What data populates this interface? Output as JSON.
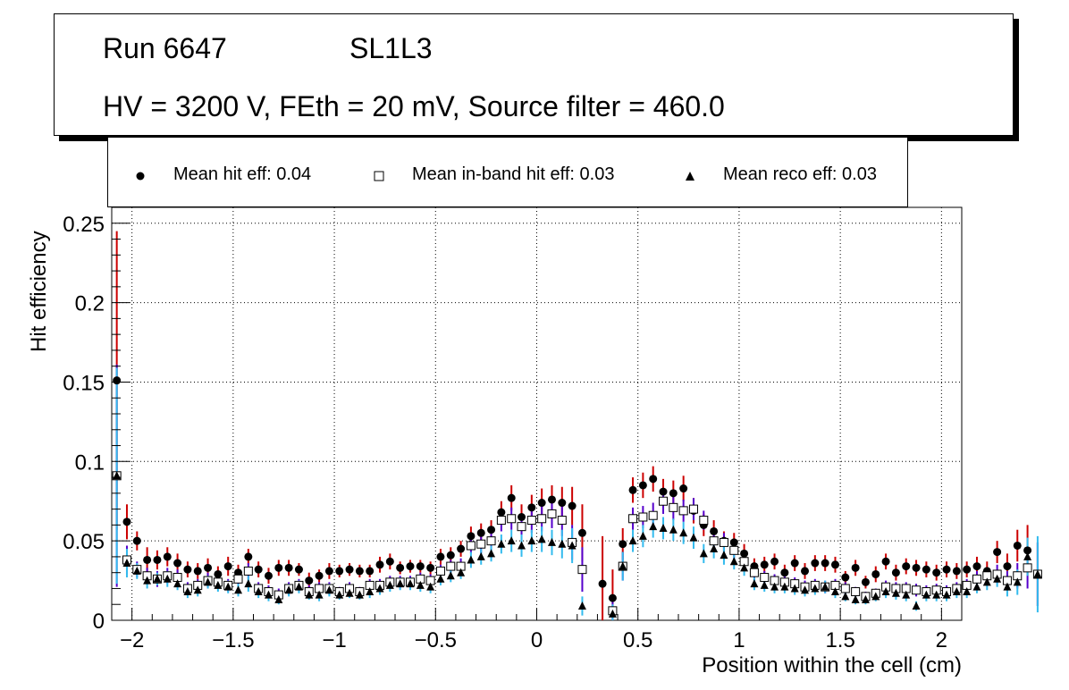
{
  "title_box": {
    "run": "Run 6647",
    "layer": "SL1L3",
    "conditions": "HV = 3200 V, FEth = 20 mV, Source filter = 460.0"
  },
  "legend": {
    "hit": "Mean hit  eff: 0.04",
    "inband": "Mean in-band hit eff: 0.03",
    "reco": "Mean reco eff: 0.03"
  },
  "colors": {
    "hit_err": "#cc0000",
    "inband_err": "#5500cc",
    "reco_err": "#33bbee",
    "grid": "#000000"
  },
  "chart_data": {
    "type": "scatter",
    "title": "",
    "xlabel": "Position within the cell (cm)",
    "ylabel": "Hit efficiency",
    "xlim": [
      -2.1,
      2.1
    ],
    "ylim": [
      0,
      0.26
    ],
    "x_ticks": [
      -2,
      -1.5,
      -1,
      -0.5,
      0,
      0.5,
      1,
      1.5,
      2
    ],
    "x_tick_labels": [
      "−2",
      "−1.5",
      "−1",
      "−0.5",
      "0",
      "0.5",
      "1",
      "1.5",
      "2"
    ],
    "y_ticks": [
      0,
      0.05,
      0.1,
      0.15,
      0.2,
      0.25
    ],
    "y_tick_labels": [
      "0",
      "0.05",
      "0.1",
      "0.15",
      "0.2",
      "0.25"
    ],
    "x_start": -2.075,
    "x_step": 0.05,
    "series": [
      {
        "name": "Mean hit  eff: 0.04",
        "marker": "filled-circle",
        "values": [
          0.151,
          0.062,
          0.05,
          0.038,
          0.038,
          0.04,
          0.036,
          0.032,
          0.031,
          0.033,
          0.029,
          0.034,
          0.03,
          0.04,
          0.032,
          0.028,
          0.033,
          0.033,
          0.032,
          0.025,
          0.028,
          0.031,
          0.031,
          0.032,
          0.031,
          0.031,
          0.035,
          0.037,
          0.033,
          0.034,
          0.034,
          0.033,
          0.04,
          0.041,
          0.045,
          0.053,
          0.055,
          0.057,
          0.068,
          0.077,
          0.065,
          0.071,
          0.074,
          0.076,
          0.074,
          0.072,
          0.055,
          null,
          0.023,
          0.014,
          0.048,
          0.082,
          0.085,
          0.089,
          0.081,
          0.08,
          0.083,
          0.069,
          0.06,
          0.056,
          0.05,
          0.049,
          0.042,
          0.034,
          0.035,
          0.037,
          0.03,
          0.036,
          0.031,
          0.036,
          0.036,
          0.035,
          0.027,
          0.033,
          0.024,
          0.029,
          0.037,
          0.03,
          0.034,
          0.033,
          0.032,
          0.03,
          0.032,
          0.031,
          0.032,
          0.034,
          0.031,
          0.043,
          0.034,
          0.047,
          0.044,
          0.029
        ]
      },
      {
        "name": "Mean in-band hit eff: 0.03",
        "marker": "open-square",
        "values": [
          0.091,
          0.038,
          0.032,
          0.028,
          0.026,
          0.028,
          0.027,
          0.02,
          0.022,
          0.025,
          0.024,
          0.022,
          0.026,
          0.031,
          0.02,
          0.018,
          0.016,
          0.02,
          0.022,
          0.018,
          0.02,
          0.02,
          0.018,
          0.02,
          0.018,
          0.022,
          0.022,
          0.024,
          0.024,
          0.024,
          0.026,
          0.025,
          0.031,
          0.034,
          0.034,
          0.047,
          0.048,
          0.05,
          0.063,
          0.064,
          0.059,
          0.063,
          0.064,
          0.067,
          0.063,
          0.049,
          0.032,
          null,
          null,
          0.006,
          0.034,
          0.064,
          0.065,
          0.066,
          0.075,
          0.071,
          0.069,
          0.07,
          0.063,
          0.05,
          0.049,
          0.044,
          0.037,
          0.03,
          0.027,
          0.025,
          0.024,
          0.023,
          0.021,
          0.022,
          0.021,
          0.022,
          0.02,
          0.018,
          0.015,
          0.017,
          0.021,
          0.02,
          0.02,
          0.019,
          0.018,
          0.019,
          0.018,
          0.02,
          0.022,
          0.026,
          0.028,
          0.029,
          0.025,
          0.028,
          0.033,
          0.029
        ]
      },
      {
        "name": "Mean reco eff: 0.03",
        "marker": "filled-triangle",
        "values": [
          0.091,
          0.036,
          0.031,
          0.025,
          0.026,
          0.026,
          0.023,
          0.018,
          0.019,
          0.024,
          0.022,
          0.021,
          0.019,
          0.023,
          0.018,
          0.016,
          0.013,
          0.019,
          0.021,
          0.016,
          0.016,
          0.019,
          0.016,
          0.017,
          0.016,
          0.018,
          0.02,
          0.022,
          0.023,
          0.023,
          0.022,
          0.021,
          0.026,
          0.028,
          0.03,
          0.038,
          0.04,
          0.042,
          0.048,
          0.05,
          0.047,
          0.05,
          0.051,
          0.049,
          0.048,
          0.047,
          0.009,
          null,
          null,
          0.004,
          0.034,
          0.05,
          0.053,
          0.059,
          0.058,
          0.057,
          0.055,
          0.052,
          0.042,
          0.045,
          0.041,
          0.037,
          0.033,
          0.023,
          0.022,
          0.021,
          0.021,
          0.02,
          0.019,
          0.02,
          0.021,
          0.018,
          0.015,
          0.013,
          0.013,
          0.015,
          0.018,
          0.017,
          0.016,
          0.009,
          0.016,
          0.016,
          0.016,
          0.018,
          0.018,
          0.021,
          0.024,
          0.026,
          0.021,
          0.024,
          0.04,
          0.029
        ]
      }
    ],
    "errors": [
      [
        0.094,
        0.011,
        0.006,
        0.008,
        0.006,
        0.006,
        0.006,
        0.005,
        0.005,
        0.006,
        0.005,
        0.006,
        0.005,
        0.005,
        0.005,
        0.005,
        0.005,
        0.005,
        0.004,
        0.005,
        0.004,
        0.005,
        0.004,
        0.004,
        0.004,
        0.004,
        0.005,
        0.005,
        0.004,
        0.004,
        0.004,
        0.004,
        0.005,
        0.005,
        0.005,
        0.006,
        0.006,
        0.006,
        0.007,
        0.008,
        0.008,
        0.008,
        0.009,
        0.009,
        0.01,
        0.012,
        0.018,
        null,
        0.03,
        0.018,
        0.01,
        0.008,
        0.008,
        0.008,
        0.008,
        0.008,
        0.008,
        0.008,
        0.007,
        0.007,
        0.006,
        0.006,
        0.006,
        0.005,
        0.005,
        0.005,
        0.005,
        0.005,
        0.005,
        0.005,
        0.005,
        0.005,
        0.004,
        0.005,
        0.004,
        0.005,
        0.005,
        0.005,
        0.005,
        0.005,
        0.005,
        0.005,
        0.005,
        0.005,
        0.005,
        0.006,
        0.006,
        0.007,
        0.008,
        0.01,
        0.016,
        0.02
      ],
      [
        0.07,
        0.009,
        0.005,
        0.005,
        0.005,
        0.005,
        0.005,
        0.004,
        0.004,
        0.005,
        0.004,
        0.004,
        0.004,
        0.005,
        0.004,
        0.004,
        0.004,
        0.004,
        0.004,
        0.004,
        0.004,
        0.004,
        0.003,
        0.004,
        0.003,
        0.004,
        0.004,
        0.004,
        0.004,
        0.004,
        0.004,
        0.004,
        0.004,
        0.004,
        0.005,
        0.005,
        0.006,
        0.006,
        0.007,
        0.007,
        0.008,
        0.008,
        0.008,
        0.009,
        0.01,
        0.011,
        0.014,
        null,
        null,
        0.008,
        0.009,
        0.007,
        0.007,
        0.008,
        0.008,
        0.008,
        0.007,
        0.007,
        0.006,
        0.006,
        0.006,
        0.006,
        0.005,
        0.005,
        0.004,
        0.004,
        0.004,
        0.004,
        0.004,
        0.004,
        0.004,
        0.004,
        0.004,
        0.003,
        0.003,
        0.003,
        0.004,
        0.004,
        0.004,
        0.004,
        0.004,
        0.004,
        0.004,
        0.004,
        0.004,
        0.005,
        0.005,
        0.006,
        0.006,
        0.008,
        0.013,
        0.02
      ],
      [
        0.068,
        0.009,
        0.005,
        0.005,
        0.004,
        0.005,
        0.004,
        0.004,
        0.004,
        0.004,
        0.004,
        0.004,
        0.004,
        0.005,
        0.004,
        0.004,
        0.003,
        0.004,
        0.004,
        0.003,
        0.004,
        0.004,
        0.003,
        0.003,
        0.003,
        0.004,
        0.004,
        0.004,
        0.004,
        0.004,
        0.004,
        0.004,
        0.004,
        0.004,
        0.004,
        0.005,
        0.005,
        0.005,
        0.006,
        0.007,
        0.007,
        0.007,
        0.008,
        0.008,
        0.009,
        0.011,
        0.006,
        null,
        null,
        0.006,
        0.009,
        0.007,
        0.007,
        0.007,
        0.007,
        0.007,
        0.007,
        0.007,
        0.006,
        0.006,
        0.006,
        0.005,
        0.005,
        0.004,
        0.004,
        0.004,
        0.004,
        0.004,
        0.004,
        0.004,
        0.004,
        0.004,
        0.003,
        0.003,
        0.003,
        0.003,
        0.004,
        0.004,
        0.004,
        0.003,
        0.004,
        0.004,
        0.004,
        0.004,
        0.004,
        0.004,
        0.005,
        0.005,
        0.006,
        0.008,
        0.012,
        0.024
      ]
    ]
  }
}
